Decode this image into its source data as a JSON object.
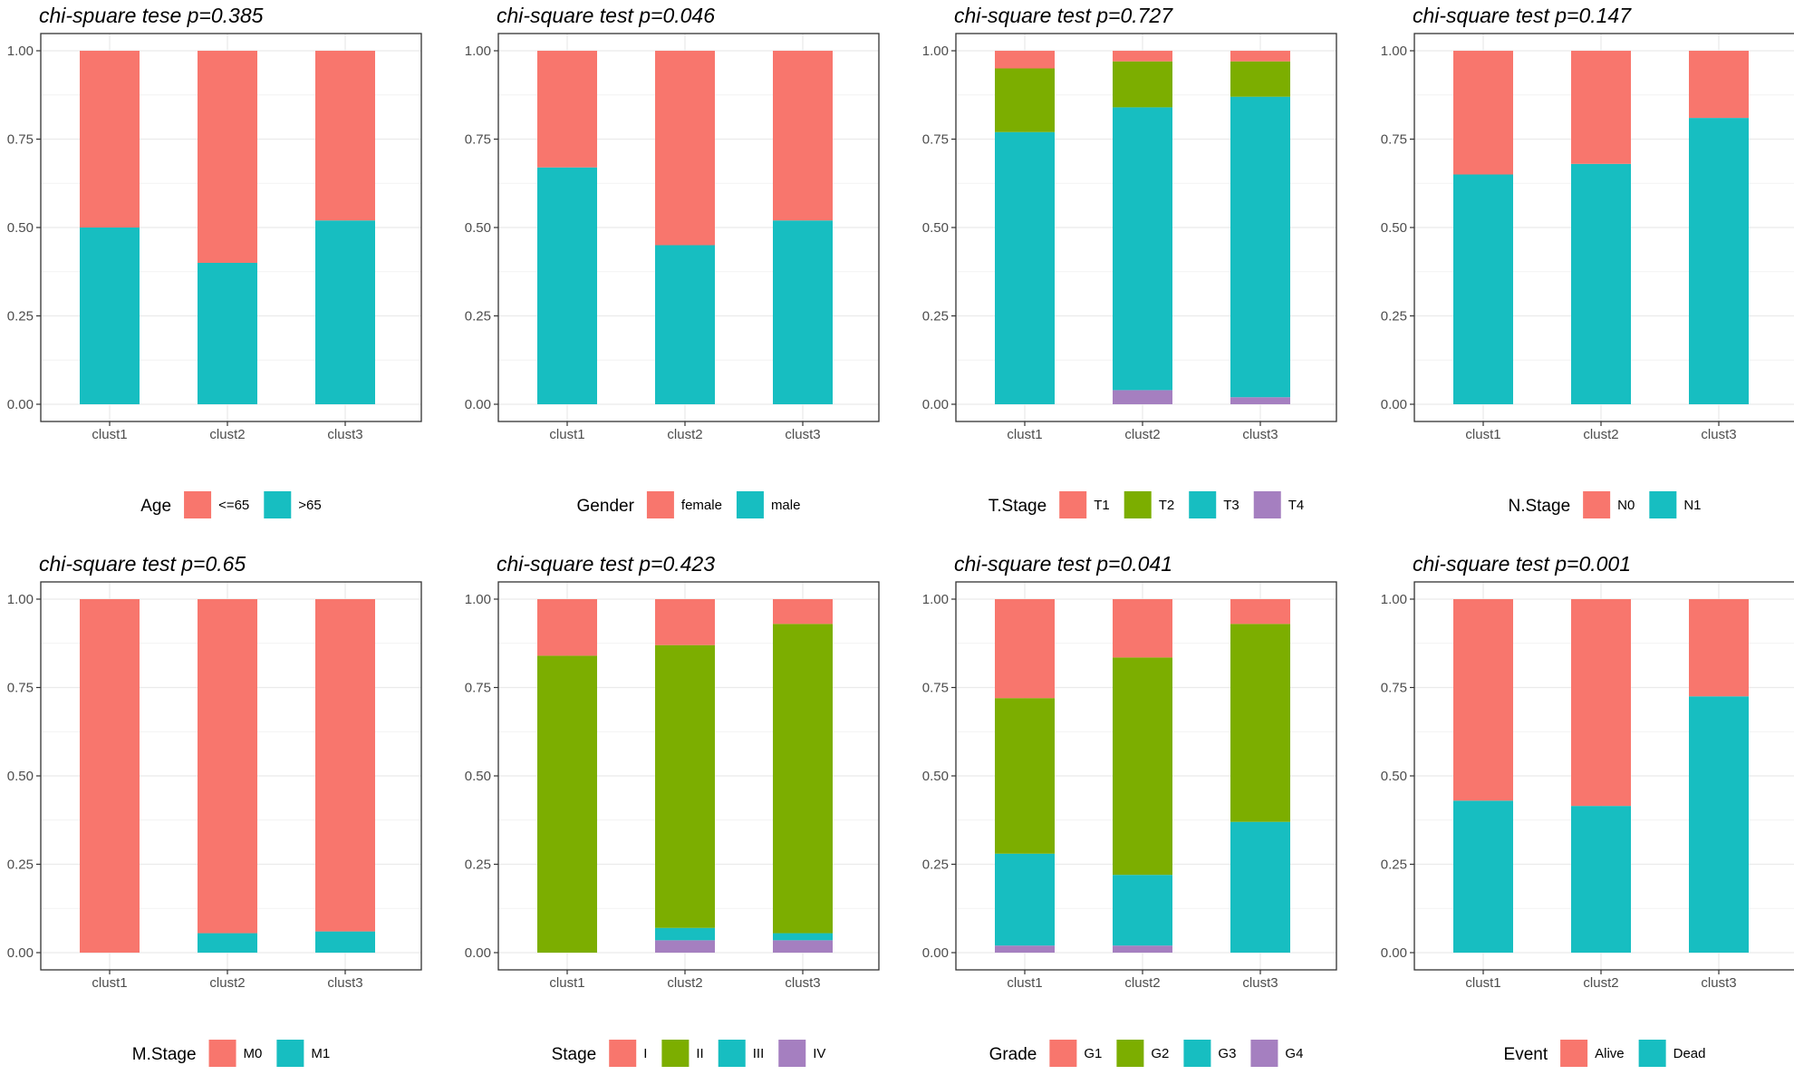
{
  "colors": {
    "c1": "#F8766D",
    "c2": "#7CAE00",
    "c3": "#17BEC1",
    "c4": "#A57FC0"
  },
  "chart_data": [
    {
      "type": "bar",
      "stacked": true,
      "title": "chi-spuare tese p=0.385",
      "categories": [
        "clust1",
        "clust2",
        "clust3"
      ],
      "yticks": [
        "0.00",
        "0.25",
        "0.50",
        "0.75",
        "1.00"
      ],
      "ylim": [
        0,
        1
      ],
      "legend_title": "Age",
      "series": [
        {
          "name": "<=65",
          "color": "#F8766D",
          "values": [
            0.5,
            0.6,
            0.48
          ]
        },
        {
          "name": ">65",
          "color": "#17BEC1",
          "values": [
            0.5,
            0.4,
            0.52
          ]
        }
      ]
    },
    {
      "type": "bar",
      "stacked": true,
      "title": "chi-square test p=0.046",
      "categories": [
        "clust1",
        "clust2",
        "clust3"
      ],
      "yticks": [
        "0.00",
        "0.25",
        "0.50",
        "0.75",
        "1.00"
      ],
      "ylim": [
        0,
        1
      ],
      "legend_title": "Gender",
      "series": [
        {
          "name": "female",
          "color": "#F8766D",
          "values": [
            0.33,
            0.55,
            0.48
          ]
        },
        {
          "name": "male",
          "color": "#17BEC1",
          "values": [
            0.67,
            0.45,
            0.52
          ]
        }
      ]
    },
    {
      "type": "bar",
      "stacked": true,
      "title": "chi-square test p=0.727",
      "categories": [
        "clust1",
        "clust2",
        "clust3"
      ],
      "yticks": [
        "0.00",
        "0.25",
        "0.50",
        "0.75",
        "1.00"
      ],
      "ylim": [
        0,
        1
      ],
      "legend_title": "T.Stage",
      "series": [
        {
          "name": "T1",
          "color": "#F8766D",
          "values": [
            0.05,
            0.03,
            0.03
          ]
        },
        {
          "name": "T2",
          "color": "#7CAE00",
          "values": [
            0.18,
            0.13,
            0.1
          ]
        },
        {
          "name": "T3",
          "color": "#17BEC1",
          "values": [
            0.77,
            0.8,
            0.85
          ]
        },
        {
          "name": "T4",
          "color": "#A57FC0",
          "values": [
            0.0,
            0.04,
            0.02
          ]
        }
      ]
    },
    {
      "type": "bar",
      "stacked": true,
      "title": "chi-square test p=0.147",
      "categories": [
        "clust1",
        "clust2",
        "clust3"
      ],
      "yticks": [
        "0.00",
        "0.25",
        "0.50",
        "0.75",
        "1.00"
      ],
      "ylim": [
        0,
        1
      ],
      "legend_title": "N.Stage",
      "series": [
        {
          "name": "N0",
          "color": "#F8766D",
          "values": [
            0.35,
            0.32,
            0.19
          ]
        },
        {
          "name": "N1",
          "color": "#17BEC1",
          "values": [
            0.65,
            0.68,
            0.81
          ]
        }
      ]
    },
    {
      "type": "bar",
      "stacked": true,
      "title": "chi-square test p=0.65",
      "categories": [
        "clust1",
        "clust2",
        "clust3"
      ],
      "yticks": [
        "0.00",
        "0.25",
        "0.50",
        "0.75",
        "1.00"
      ],
      "ylim": [
        0,
        1
      ],
      "legend_title": "M.Stage",
      "series": [
        {
          "name": "M0",
          "color": "#F8766D",
          "values": [
            1.0,
            0.945,
            0.94
          ]
        },
        {
          "name": "M1",
          "color": "#17BEC1",
          "values": [
            0.0,
            0.055,
            0.06
          ]
        }
      ]
    },
    {
      "type": "bar",
      "stacked": true,
      "title": "chi-square test p=0.423",
      "categories": [
        "clust1",
        "clust2",
        "clust3"
      ],
      "yticks": [
        "0.00",
        "0.25",
        "0.50",
        "0.75",
        "1.00"
      ],
      "ylim": [
        0,
        1
      ],
      "legend_title": "Stage",
      "series": [
        {
          "name": "I",
          "color": "#F8766D",
          "values": [
            0.16,
            0.13,
            0.07
          ]
        },
        {
          "name": "II",
          "color": "#7CAE00",
          "values": [
            0.84,
            0.8,
            0.875
          ]
        },
        {
          "name": "III",
          "color": "#17BEC1",
          "values": [
            0.0,
            0.035,
            0.02
          ]
        },
        {
          "name": "IV",
          "color": "#A57FC0",
          "values": [
            0.0,
            0.035,
            0.035
          ]
        }
      ]
    },
    {
      "type": "bar",
      "stacked": true,
      "title": "chi-square test p=0.041",
      "categories": [
        "clust1",
        "clust2",
        "clust3"
      ],
      "yticks": [
        "0.00",
        "0.25",
        "0.50",
        "0.75",
        "1.00"
      ],
      "ylim": [
        0,
        1
      ],
      "legend_title": "Grade",
      "series": [
        {
          "name": "G1",
          "color": "#F8766D",
          "values": [
            0.28,
            0.165,
            0.07
          ]
        },
        {
          "name": "G2",
          "color": "#7CAE00",
          "values": [
            0.44,
            0.615,
            0.56
          ]
        },
        {
          "name": "G3",
          "color": "#17BEC1",
          "values": [
            0.26,
            0.2,
            0.37
          ]
        },
        {
          "name": "G4",
          "color": "#A57FC0",
          "values": [
            0.02,
            0.02,
            0.0
          ]
        }
      ]
    },
    {
      "type": "bar",
      "stacked": true,
      "title": "chi-square test p=0.001",
      "categories": [
        "clust1",
        "clust2",
        "clust3"
      ],
      "yticks": [
        "0.00",
        "0.25",
        "0.50",
        "0.75",
        "1.00"
      ],
      "ylim": [
        0,
        1
      ],
      "legend_title": "Event",
      "series": [
        {
          "name": "Alive",
          "color": "#F8766D",
          "values": [
            0.57,
            0.585,
            0.275
          ]
        },
        {
          "name": "Dead",
          "color": "#17BEC1",
          "values": [
            0.43,
            0.415,
            0.725
          ]
        }
      ]
    }
  ]
}
